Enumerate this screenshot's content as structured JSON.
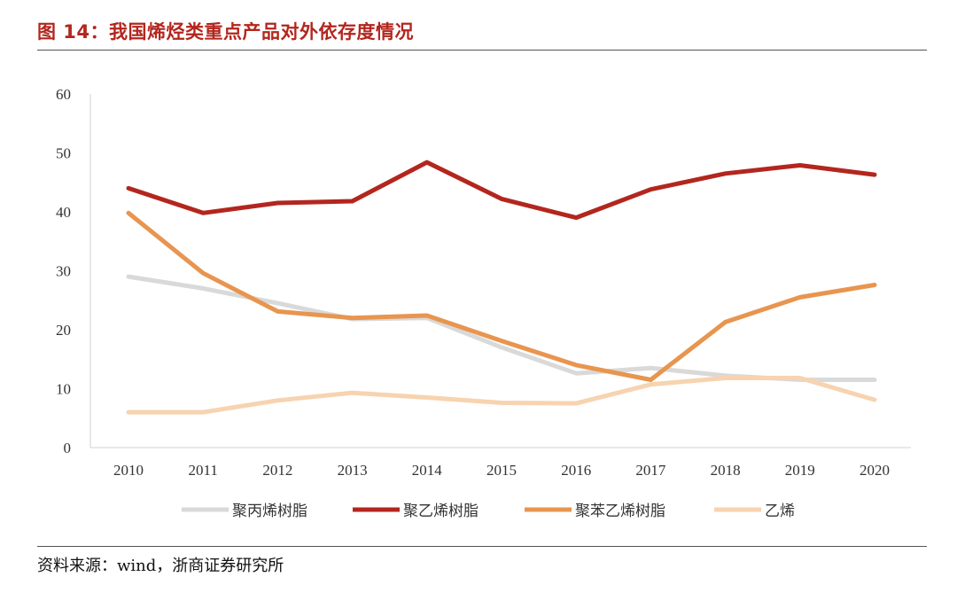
{
  "header": {
    "title": "图 14：我国烯烃类重点产品对外依存度情况"
  },
  "footer": {
    "source": "资料来源：wind，浙商证券研究所"
  },
  "chart_data": {
    "type": "line",
    "title": "我国烯烃类重点产品对外依存度情况",
    "xlabel": "",
    "ylabel": "",
    "ylim": [
      0,
      60
    ],
    "yticks": [
      0,
      10,
      20,
      30,
      40,
      50,
      60
    ],
    "categories": [
      "2010",
      "2011",
      "2012",
      "2013",
      "2014",
      "2015",
      "2016",
      "2017",
      "2018",
      "2019",
      "2020"
    ],
    "legend_position": "bottom",
    "series": [
      {
        "name": "聚丙烯树脂",
        "color": "#d9d9d9",
        "values": [
          29,
          27,
          24.5,
          21.8,
          22,
          17,
          12.6,
          13.5,
          12.2,
          11.5,
          11.5
        ]
      },
      {
        "name": "聚乙烯树脂",
        "color": "#b3261e",
        "values": [
          44,
          39.8,
          41.5,
          41.8,
          48.4,
          42.2,
          39,
          43.8,
          46.5,
          47.9,
          46.3
        ]
      },
      {
        "name": "聚苯乙烯树脂",
        "color": "#e8954f",
        "values": [
          39.8,
          29.6,
          23.1,
          22,
          22.4,
          18.1,
          14,
          11.5,
          21.3,
          25.5,
          27.6
        ]
      },
      {
        "name": "乙烯",
        "color": "#f7d3b0",
        "values": [
          6,
          6,
          8,
          9.3,
          8.5,
          7.6,
          7.5,
          10.7,
          11.8,
          11.8,
          8.1
        ]
      }
    ]
  }
}
